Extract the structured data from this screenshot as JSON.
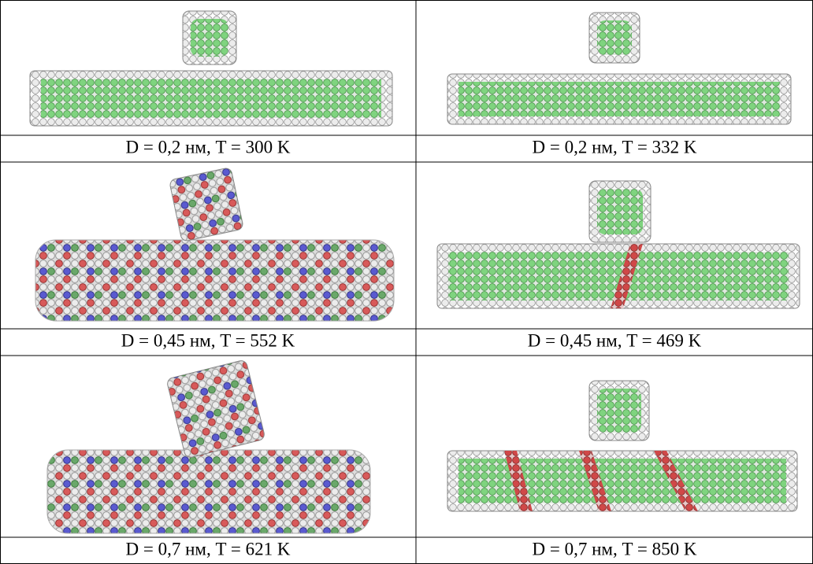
{
  "table": {
    "rows": [
      [
        "D = 0,2 нм, T = 300 K",
        "D = 0,2 нм, T = 332 K"
      ],
      [
        "D = 0,45 нм, T = 552 K",
        "D = 0,45 нм, T = 469 K"
      ],
      [
        "D = 0,7 нм, T = 621 K",
        "D = 0,7 нм, T = 850 K"
      ]
    ]
  }
}
